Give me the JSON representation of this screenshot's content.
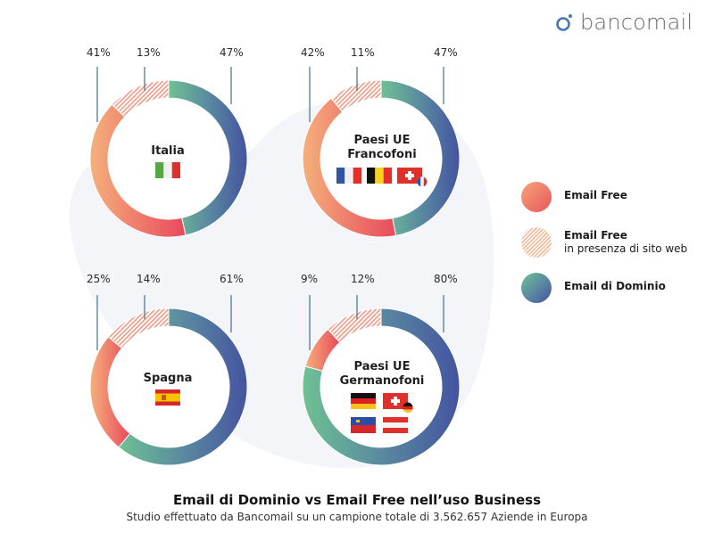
{
  "brand": {
    "logo_text": "bancomail",
    "logo_icon": "bancomail-logo-icon"
  },
  "legend": {
    "items": [
      {
        "label": "Email Free",
        "sublabel": "",
        "key": "free"
      },
      {
        "label": "Email Free",
        "sublabel": "in presenza di sito web",
        "key": "free_site"
      },
      {
        "label": "Email di Dominio",
        "sublabel": "",
        "key": "domain"
      }
    ]
  },
  "colors": {
    "free_start": "#f4a57a",
    "free_end": "#e8555c",
    "domain_start": "#6fc193",
    "domain_end": "#4453a0",
    "hatch": "#f2a38a",
    "bracket": "#4f7d92",
    "blob": "#f3f5f8"
  },
  "donuts": [
    {
      "name": "Italia",
      "label_lines": [
        "Italia"
      ],
      "flags": [
        "flag-italy"
      ],
      "free": 41,
      "free_site": 13,
      "domain": 47
    },
    {
      "name": "Paesi UE Francofoni",
      "label_lines": [
        "Paesi UE",
        "Francofoni"
      ],
      "flags": [
        "flag-france",
        "flag-belgium",
        "flag-switzerland-fr"
      ],
      "free": 42,
      "free_site": 11,
      "domain": 47
    },
    {
      "name": "Spagna",
      "label_lines": [
        "Spagna"
      ],
      "flags": [
        "flag-spain"
      ],
      "free": 25,
      "free_site": 14,
      "domain": 61
    },
    {
      "name": "Paesi UE Germanofoni",
      "label_lines": [
        "Paesi UE",
        "Germanofoni"
      ],
      "flags": [
        "flag-germany",
        "flag-switzerland-de",
        "flag-liechtenstein",
        "flag-austria"
      ],
      "free": 9,
      "free_site": 12,
      "domain": 80
    }
  ],
  "labels": {
    "d0": {
      "free": "41%",
      "free_site": "13%",
      "domain": "47%",
      "l1": "Italia"
    },
    "d1": {
      "free": "42%",
      "free_site": "11%",
      "domain": "47%",
      "l1": "Paesi UE",
      "l2": "Francofoni"
    },
    "d2": {
      "free": "25%",
      "free_site": "14%",
      "domain": "61%",
      "l1": "Spagna"
    },
    "d3": {
      "free": "9%",
      "free_site": "12%",
      "domain": "80%",
      "l1": "Paesi UE",
      "l2": "Germanofoni"
    }
  },
  "footer": {
    "title": "Email di Dominio vs Email Free nell’uso Business",
    "subtitle": "Studio effettuato da Bancomail su un campione totale di 3.562.657 Aziende in Europa"
  },
  "chart_data": {
    "type": "pie",
    "variant": "donut",
    "title": "Email di Dominio vs Email Free nell’uso Business",
    "subtitle": "Studio effettuato da Bancomail su un campione totale di 3.562.657 Aziende in Europa",
    "categories": [
      "Italia",
      "Paesi UE Francofoni",
      "Spagna",
      "Paesi UE Germanofoni"
    ],
    "series": [
      {
        "name": "Email Free",
        "values": [
          41,
          42,
          25,
          9
        ]
      },
      {
        "name": "Email Free in presenza di sito web",
        "values": [
          13,
          11,
          14,
          12
        ]
      },
      {
        "name": "Email di Dominio",
        "values": [
          47,
          47,
          61,
          80
        ]
      }
    ],
    "unit": "%",
    "legend_position": "right",
    "sample_size": 3562657
  }
}
